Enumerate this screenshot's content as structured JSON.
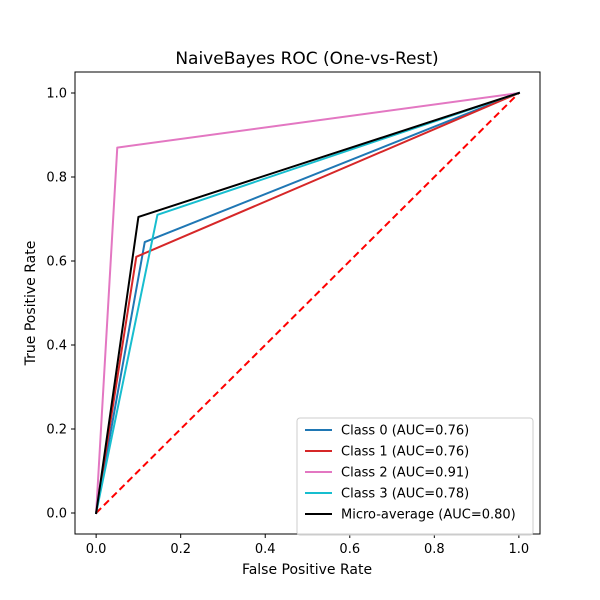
{
  "chart_data": {
    "type": "line",
    "title": "NaiveBayes ROC (One-vs-Rest)",
    "xlabel": "False Positive Rate",
    "ylabel": "True Positive Rate",
    "xlim": [
      -0.05,
      1.05
    ],
    "ylim": [
      -0.05,
      1.05
    ],
    "xticks": [
      "0.0",
      "0.2",
      "0.4",
      "0.6",
      "0.8",
      "1.0"
    ],
    "yticks": [
      "0.0",
      "0.2",
      "0.4",
      "0.6",
      "0.8",
      "1.0"
    ],
    "grid": false,
    "legend_position": "lower-right",
    "series": [
      {
        "name": "Class 0 (AUC=0.76)",
        "color": "#1f77b4",
        "dash": "solid",
        "x": [
          0.0,
          0.115,
          1.0
        ],
        "y": [
          0.0,
          0.645,
          1.0
        ]
      },
      {
        "name": "Class 1 (AUC=0.76)",
        "color": "#d62728",
        "dash": "solid",
        "x": [
          0.0,
          0.095,
          1.0
        ],
        "y": [
          0.0,
          0.61,
          1.0
        ]
      },
      {
        "name": "Class 2 (AUC=0.91)",
        "color": "#e377c2",
        "dash": "solid",
        "x": [
          0.0,
          0.05,
          1.0
        ],
        "y": [
          0.0,
          0.87,
          1.0
        ]
      },
      {
        "name": "Class 3 (AUC=0.78)",
        "color": "#17becf",
        "dash": "solid",
        "x": [
          0.0,
          0.145,
          1.0
        ],
        "y": [
          0.0,
          0.71,
          1.0
        ]
      },
      {
        "name": "Micro-average (AUC=0.80)",
        "color": "#000000",
        "dash": "solid",
        "x": [
          0.0,
          0.1,
          1.0
        ],
        "y": [
          0.0,
          0.705,
          1.0
        ]
      }
    ],
    "reference_line": {
      "color": "#ff0000",
      "dash": "dashed",
      "x": [
        0.0,
        1.0
      ],
      "y": [
        0.0,
        1.0
      ]
    }
  }
}
